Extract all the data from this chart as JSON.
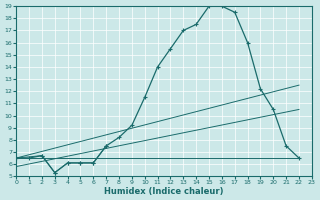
{
  "xlabel": "Humidex (Indice chaleur)",
  "background_color": "#cce8e8",
  "line_color": "#1a6b6b",
  "xlim": [
    0,
    23
  ],
  "ylim": [
    5,
    19
  ],
  "xticks": [
    0,
    1,
    2,
    3,
    4,
    5,
    6,
    7,
    8,
    9,
    10,
    11,
    12,
    13,
    14,
    15,
    16,
    17,
    18,
    19,
    20,
    21,
    22,
    23
  ],
  "yticks": [
    5,
    6,
    7,
    8,
    9,
    10,
    11,
    12,
    13,
    14,
    15,
    16,
    17,
    18,
    19
  ],
  "curve1_x": [
    0,
    1,
    2,
    3,
    4,
    5,
    6,
    7,
    8,
    9,
    10,
    11,
    12,
    13,
    14,
    15,
    16,
    17,
    18,
    19,
    20,
    21,
    22
  ],
  "curve1_y": [
    6.5,
    6.5,
    6.7,
    5.3,
    6.1,
    6.1,
    6.1,
    7.5,
    8.2,
    9.2,
    11.5,
    14.0,
    15.5,
    17.0,
    17.5,
    19.0,
    19.0,
    18.5,
    16.0,
    12.2,
    10.5,
    7.5,
    6.5
  ],
  "line2_x": [
    0,
    22
  ],
  "line2_y": [
    6.5,
    6.5
  ],
  "line3_x": [
    0,
    22
  ],
  "line3_y": [
    6.5,
    12.5
  ],
  "line4_x": [
    0,
    22
  ],
  "line4_y": [
    5.8,
    10.5
  ],
  "line5_x": [
    0,
    7,
    22
  ],
  "line5_y": [
    6.5,
    7.5,
    6.5
  ],
  "line6_x": [
    0,
    7,
    22
  ],
  "line6_y": [
    5.8,
    7.2,
    6.5
  ]
}
